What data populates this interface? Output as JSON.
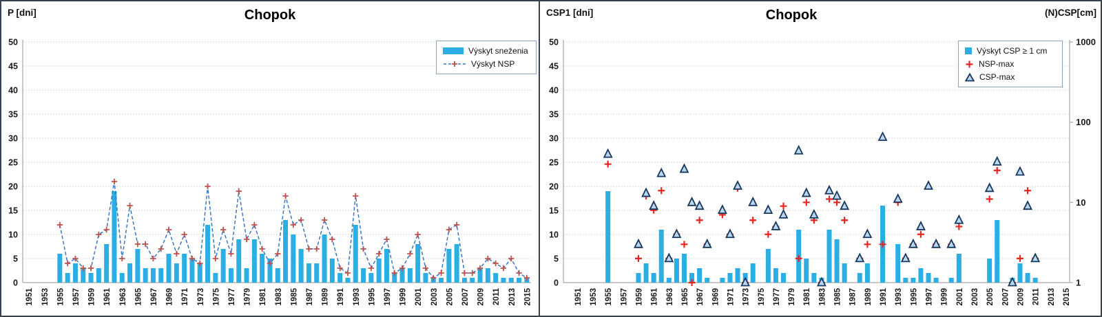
{
  "colors": {
    "bar": "#2aaee3",
    "nsp_line": "#3a78c4",
    "nsp_plus_left": "#c0504d",
    "plus_right": "#e8251f",
    "triangle_stroke": "#17375e",
    "triangle_fill": "#b9d8ef",
    "grid": "#d9d9d9",
    "axis": "#a6a6a6",
    "frame": "#35414f",
    "legend_border": "#8ba3bd"
  },
  "chart_data": [
    {
      "type": "bar+line",
      "title": "Chopok",
      "ylabel": "P [dni]",
      "ylim": [
        0,
        50
      ],
      "y_ticks": [
        0,
        5,
        10,
        15,
        20,
        25,
        30,
        35,
        40,
        45,
        50
      ],
      "grid": "horizontal-dashed",
      "legend_position": "top-right",
      "x_tick_years": [
        1951,
        1953,
        1955,
        1957,
        1959,
        1961,
        1963,
        1965,
        1967,
        1969,
        1971,
        1973,
        1975,
        1977,
        1979,
        1981,
        1983,
        1985,
        1987,
        1989,
        1991,
        1993,
        1995,
        1997,
        1999,
        2001,
        2003,
        2005,
        2007,
        2009,
        2011,
        2013,
        2015
      ],
      "years": [
        1951,
        1952,
        1953,
        1954,
        1955,
        1956,
        1957,
        1958,
        1959,
        1960,
        1961,
        1962,
        1963,
        1964,
        1965,
        1966,
        1967,
        1968,
        1969,
        1970,
        1971,
        1972,
        1973,
        1974,
        1975,
        1976,
        1977,
        1978,
        1979,
        1980,
        1981,
        1982,
        1983,
        1984,
        1985,
        1986,
        1987,
        1988,
        1989,
        1990,
        1991,
        1992,
        1993,
        1994,
        1995,
        1996,
        1997,
        1998,
        1999,
        2000,
        2001,
        2002,
        2003,
        2004,
        2005,
        2006,
        2007,
        2008,
        2009,
        2010,
        2011,
        2012,
        2013,
        2014,
        2015
      ],
      "series": [
        {
          "name": "Výskyt sneženia",
          "type": "bar",
          "color": "#2aaee3",
          "values": [
            null,
            null,
            null,
            null,
            6,
            2,
            4,
            3,
            2,
            3,
            8,
            19,
            2,
            4,
            7,
            3,
            3,
            3,
            6,
            4,
            6,
            5,
            4,
            12,
            2,
            7,
            3,
            9,
            3,
            9,
            6,
            5,
            3,
            13,
            10,
            7,
            4,
            4,
            10,
            5,
            2,
            1,
            12,
            3,
            2,
            5,
            7,
            2,
            3,
            3,
            8,
            2,
            1,
            1,
            7,
            8,
            1,
            1,
            3,
            3,
            2,
            1,
            1,
            1,
            1
          ]
        },
        {
          "name": "Výskyt NSP",
          "type": "line+plus",
          "color": "#3a78c4",
          "marker_color": "#c0504d",
          "values": [
            null,
            null,
            null,
            null,
            12,
            4,
            5,
            3,
            3,
            10,
            11,
            21,
            5,
            16,
            8,
            8,
            5,
            7,
            11,
            6,
            10,
            5,
            4,
            20,
            5,
            11,
            6,
            19,
            9,
            12,
            7,
            4,
            6,
            18,
            12,
            13,
            7,
            7,
            13,
            9,
            3,
            2,
            18,
            7,
            3,
            6,
            9,
            2,
            3,
            6,
            10,
            3,
            1,
            2,
            11,
            12,
            2,
            2,
            3,
            5,
            4,
            3,
            5,
            2,
            1
          ]
        }
      ]
    },
    {
      "type": "bar+scatter",
      "title": "Chopok",
      "ylabel": "CSP1 [dni]",
      "y2label": "(N)CSP[cm]",
      "ylim": [
        0,
        50
      ],
      "y_ticks": [
        0,
        5,
        10,
        15,
        20,
        25,
        30,
        35,
        40,
        45,
        50
      ],
      "y2_scale": "log",
      "y2lim": [
        1,
        1000
      ],
      "y2_ticks": [
        1,
        10,
        100,
        1000
      ],
      "grid": "horizontal-dashed",
      "legend_position": "top-right",
      "x_tick_years": [
        1951,
        1953,
        1955,
        1957,
        1959,
        1961,
        1963,
        1965,
        1967,
        1969,
        1971,
        1973,
        1975,
        1977,
        1979,
        1981,
        1983,
        1985,
        1987,
        1989,
        1991,
        1993,
        1995,
        1997,
        1999,
        2001,
        2003,
        2005,
        2007,
        2009,
        2011,
        2013,
        2015
      ],
      "years": [
        1951,
        1952,
        1953,
        1954,
        1955,
        1956,
        1957,
        1958,
        1959,
        1960,
        1961,
        1962,
        1963,
        1964,
        1965,
        1966,
        1967,
        1968,
        1969,
        1970,
        1971,
        1972,
        1973,
        1974,
        1975,
        1976,
        1977,
        1978,
        1979,
        1980,
        1981,
        1982,
        1983,
        1984,
        1985,
        1986,
        1987,
        1988,
        1989,
        1990,
        1991,
        1992,
        1993,
        1994,
        1995,
        1996,
        1997,
        1998,
        1999,
        2000,
        2001,
        2002,
        2003,
        2004,
        2005,
        2006,
        2007,
        2008,
        2009,
        2010,
        2011,
        2012,
        2013,
        2014,
        2015
      ],
      "series": [
        {
          "name": "Výskyt CSP ≥ 1 cm",
          "type": "bar",
          "axis": "y1",
          "color": "#2aaee3",
          "values": [
            null,
            null,
            null,
            null,
            19,
            null,
            null,
            null,
            2,
            4,
            2,
            11,
            1,
            5,
            6,
            2,
            3,
            1,
            null,
            1,
            2,
            3,
            2,
            4,
            null,
            7,
            3,
            2,
            null,
            11,
            5,
            2,
            1,
            11,
            9,
            4,
            null,
            2,
            4,
            null,
            16,
            null,
            8,
            1,
            1,
            3,
            2,
            1,
            null,
            1,
            6,
            null,
            null,
            null,
            5,
            13,
            null,
            1,
            4,
            2,
            1,
            null,
            null,
            null,
            null
          ]
        },
        {
          "name": "NSP-max",
          "type": "plus",
          "axis": "y2",
          "color": "#e8251f",
          "values": [
            null,
            null,
            null,
            null,
            30,
            null,
            null,
            null,
            2,
            12,
            8,
            14,
            2,
            4,
            3,
            1,
            6,
            3,
            null,
            7,
            4,
            15,
            1,
            6,
            null,
            4,
            5,
            9,
            null,
            2,
            10,
            6,
            1,
            11,
            10,
            6,
            null,
            2,
            3,
            null,
            3,
            null,
            10,
            2,
            3,
            4,
            null,
            3,
            null,
            3,
            5,
            null,
            null,
            null,
            11,
            25,
            null,
            1,
            2,
            14,
            2,
            null,
            null,
            null,
            null
          ]
        },
        {
          "name": "CSP-max",
          "type": "triangle",
          "axis": "y2",
          "color": "#17375e",
          "fill": "#b9d8ef",
          "values": [
            null,
            null,
            null,
            null,
            40,
            null,
            null,
            null,
            3,
            13,
            9,
            23,
            2,
            4,
            26,
            10,
            9,
            3,
            null,
            8,
            4,
            16,
            1,
            10,
            null,
            8,
            5,
            7,
            null,
            44,
            13,
            7,
            1,
            14,
            12,
            9,
            null,
            2,
            4,
            null,
            65,
            null,
            11,
            2,
            3,
            5,
            16,
            3,
            null,
            3,
            6,
            null,
            null,
            null,
            15,
            32,
            null,
            1,
            24,
            9,
            2,
            null,
            null,
            null,
            null
          ]
        }
      ]
    }
  ]
}
